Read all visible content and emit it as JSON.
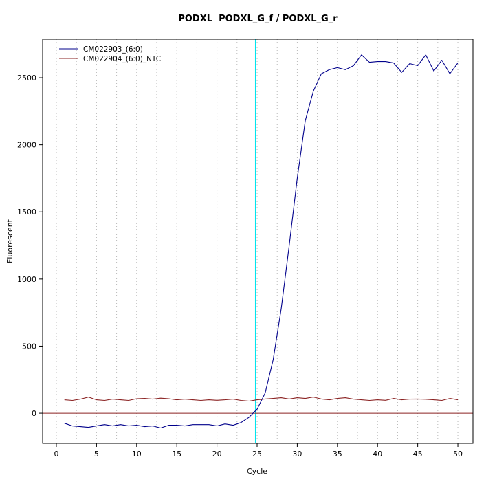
{
  "title": "PODXL  PODXL_G_f / PODXL_G_r",
  "colors": {
    "sample_line": "#00008B",
    "ntc_line": "#8B2323",
    "threshold_line": "#8B2323",
    "ct_line": "#00E5EE",
    "gridline": "#b8b8b8",
    "plot_border": "#000000"
  },
  "chart_data": {
    "type": "line",
    "title": "PODXL  PODXL_G_f / PODXL_G_r",
    "xlabel": "Cycle",
    "ylabel": "Fluorescent",
    "xlim": [
      -1.71,
      51.88
    ],
    "ylim": [
      -225,
      2787
    ],
    "x_ticks": [
      0,
      5,
      10,
      15,
      20,
      25,
      30,
      35,
      40,
      45,
      50
    ],
    "y_ticks": [
      0,
      500,
      1000,
      1500,
      2000,
      2500
    ],
    "grid": {
      "x_interval": 2.5,
      "style": "dotted",
      "horizontal": false
    },
    "threshold_line_y": 0,
    "ct_line_x": 24.8,
    "legend_position": "top-left",
    "x": [
      1,
      2,
      3,
      4,
      5,
      6,
      7,
      8,
      9,
      10,
      11,
      12,
      13,
      14,
      15,
      16,
      17,
      18,
      19,
      20,
      21,
      22,
      23,
      24,
      25,
      26,
      27,
      28,
      29,
      30,
      31,
      32,
      33,
      34,
      35,
      36,
      37,
      38,
      39,
      40,
      41,
      42,
      43,
      44,
      45,
      46,
      47,
      48,
      49,
      50
    ],
    "series": [
      {
        "name": "CM022903_(6:0)",
        "color": "#00008B",
        "values": [
          -75,
          -95,
          -100,
          -105,
          -95,
          -85,
          -95,
          -85,
          -95,
          -90,
          -100,
          -95,
          -110,
          -90,
          -90,
          -95,
          -85,
          -85,
          -85,
          -95,
          -80,
          -90,
          -70,
          -30,
          30,
          150,
          400,
          780,
          1250,
          1750,
          2180,
          2400,
          2530,
          2560,
          2575,
          2560,
          2590,
          2670,
          2615,
          2620,
          2620,
          2610,
          2540,
          2605,
          2590,
          2670,
          2550,
          2630,
          2530,
          2610
        ]
      },
      {
        "name": "CM022904_(6:0)_NTC",
        "color": "#8B2323",
        "values": [
          100,
          95,
          105,
          120,
          100,
          95,
          105,
          100,
          95,
          108,
          110,
          105,
          112,
          108,
          100,
          105,
          100,
          95,
          100,
          96,
          100,
          105,
          95,
          90,
          100,
          106,
          110,
          115,
          106,
          115,
          110,
          120,
          106,
          100,
          110,
          115,
          105,
          100,
          95,
          100,
          96,
          110,
          100,
          105,
          106,
          104,
          100,
          95,
          110,
          100
        ]
      }
    ]
  }
}
